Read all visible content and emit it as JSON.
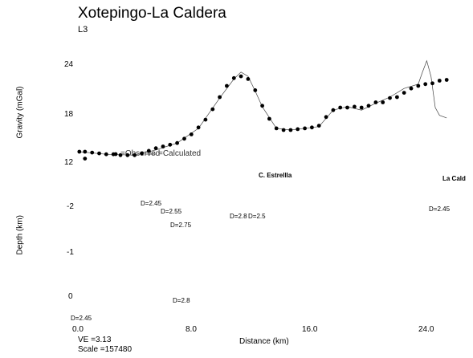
{
  "header": {
    "title": "Xotepingo-La Caldera",
    "subtitle": "L3"
  },
  "chart_data": [
    {
      "type": "line",
      "title": "Xotepingo-La Caldera",
      "subtitle": "L3",
      "ylabel": "Gravity (mGal)",
      "xlabel": "",
      "ylim": [
        12,
        26
      ],
      "xlim": [
        0,
        26.5
      ],
      "yticks": [
        "24",
        "18",
        "12"
      ],
      "legend": {
        "observed": "=Observed",
        "calculated": "=Calculated",
        "placement": "bottom-left"
      },
      "series": [
        {
          "name": "Observed",
          "style": "dots",
          "x": [
            0.1,
            0.5,
            1.0,
            1.5,
            2.0,
            2.5,
            3.0,
            3.5,
            4.0,
            4.5,
            5.0,
            5.5,
            6.0,
            6.5,
            7.0,
            7.5,
            8.0,
            8.5,
            9.0,
            9.5,
            10.0,
            10.5,
            11.0,
            11.5,
            12.0,
            12.5,
            13.0,
            13.5,
            14.0,
            14.5,
            15.0,
            15.5,
            16.0,
            16.5,
            17.0,
            17.5,
            18.0,
            18.5,
            19.0,
            19.5,
            20.0,
            20.5,
            21.0,
            21.5,
            22.0,
            22.5,
            23.0,
            23.5,
            24.0,
            24.5,
            25.0,
            25.5,
            26.0
          ],
          "y": [
            13.3,
            13.3,
            13.2,
            13.1,
            13.0,
            13.0,
            12.9,
            12.9,
            12.9,
            13.1,
            13.4,
            13.7,
            13.9,
            14.1,
            14.3,
            14.8,
            15.3,
            16.1,
            17.0,
            18.2,
            19.6,
            20.9,
            21.8,
            22.0,
            21.7,
            20.4,
            18.6,
            17.1,
            16.0,
            15.8,
            15.8,
            15.9,
            16.0,
            16.1,
            16.3,
            17.3,
            18.1,
            18.4,
            18.4,
            18.5,
            18.4,
            18.6,
            19.0,
            19.0,
            19.5,
            19.6,
            20.1,
            20.6,
            20.9,
            21.1,
            21.2,
            21.5,
            21.6
          ]
        },
        {
          "name": "Calculated",
          "style": "line",
          "x": [
            0.1,
            2.0,
            4.0,
            5.5,
            7.0,
            8.5,
            10.0,
            11.0,
            11.5,
            12.0,
            12.5,
            13.0,
            14.0,
            15.0,
            17.0,
            18.0,
            19.0,
            20.0,
            21.0,
            22.0,
            23.0,
            24.0,
            24.3,
            24.6,
            24.9,
            25.2,
            25.5,
            26.0
          ],
          "y": [
            13.3,
            13.0,
            12.9,
            13.5,
            14.3,
            16.0,
            19.5,
            21.7,
            22.5,
            22.0,
            20.3,
            18.5,
            16.0,
            15.8,
            16.2,
            18.1,
            18.5,
            18.1,
            18.9,
            19.6,
            20.6,
            21.1,
            22.5,
            23.8,
            22.0,
            18.4,
            17.5,
            17.2
          ]
        }
      ],
      "noisy_start_point": {
        "x": 0.5,
        "y": 12.5
      }
    },
    {
      "type": "area",
      "ylabel": "Depth (km)",
      "xlabel": "Distance (km)",
      "xlim": [
        0,
        26.5
      ],
      "xticks": [
        "0.0",
        "8.0",
        "16.0",
        "24.0"
      ],
      "yticks": [
        "-2",
        "-1",
        "0"
      ],
      "footer": {
        "ve": "VE =3.13",
        "scale": "Scale =157480"
      },
      "markers": [
        {
          "name": "C. Estrellla",
          "x": 11.7
        },
        {
          "name": "La Cald",
          "x": 24.6
        }
      ],
      "layers": [
        {
          "label": "D=2.45",
          "color": "#5bc8da"
        },
        {
          "label": "D=2.55",
          "color": "#f2ec3a"
        },
        {
          "label": "D=2.75",
          "color": "#f28c8a"
        },
        {
          "label": "D=2.8",
          "color": "#ef3a29"
        },
        {
          "label": "D=2.5",
          "color": "#e08ac8"
        }
      ],
      "region_labels": [
        "D=2.45",
        "D=2.55",
        "D=2.75",
        "D=2.8",
        "D=2.8",
        "D=2.5",
        "D=2.45",
        "D=2.45"
      ]
    }
  ]
}
